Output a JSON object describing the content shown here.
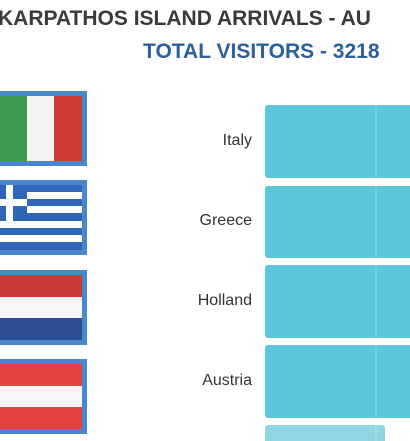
{
  "header": {
    "title": "KARPATHOS ISLAND ARRIVALS - AU",
    "subtitle": "TOTAL VISITORS - 3218"
  },
  "rows": [
    {
      "label": "Italy"
    },
    {
      "label": "Greece"
    },
    {
      "label": "Holland"
    },
    {
      "label": "Austria"
    }
  ]
}
